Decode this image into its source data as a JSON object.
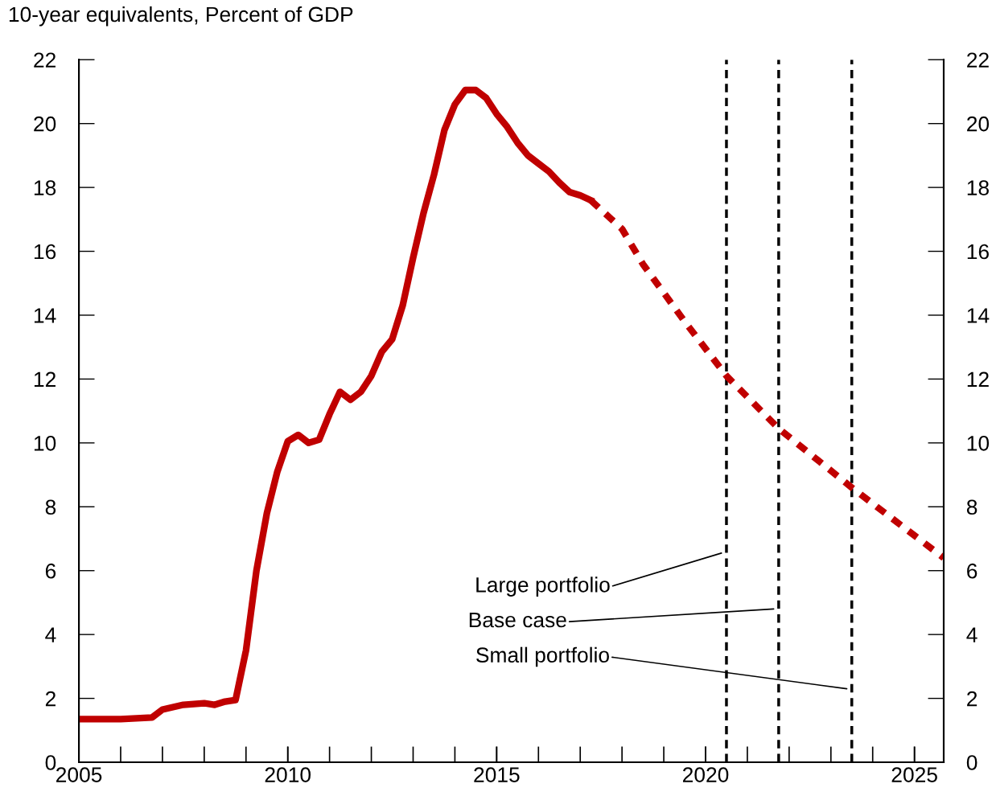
{
  "chart_data": {
    "type": "line",
    "ylabel": "10-year equivalents, Percent of GDP",
    "series": [
      {
        "color": "#c00000",
        "line_style": "solid",
        "x": [
          2005.0,
          2006.0,
          2006.75,
          2007.0,
          2007.5,
          2008.0,
          2008.25,
          2008.5,
          2008.75,
          2009.0,
          2009.25,
          2009.5,
          2009.75,
          2010.0,
          2010.25,
          2010.5,
          2010.75,
          2011.0,
          2011.25,
          2011.5,
          2011.75,
          2012.0,
          2012.25,
          2012.5,
          2012.75,
          2013.0,
          2013.25,
          2013.5,
          2013.75,
          2014.0,
          2014.25,
          2014.5,
          2014.75,
          2015.0,
          2015.25,
          2015.5,
          2015.75,
          2016.0,
          2016.25,
          2016.5,
          2016.75,
          2017.0,
          2017.25
        ],
        "values": [
          1.35,
          1.35,
          1.4,
          1.65,
          1.8,
          1.85,
          1.8,
          1.9,
          1.95,
          3.5,
          6.0,
          7.8,
          9.1,
          10.05,
          10.25,
          10.0,
          10.1,
          10.9,
          11.6,
          11.35,
          11.6,
          12.1,
          12.85,
          13.25,
          14.3,
          15.8,
          17.2,
          18.4,
          19.8,
          20.6,
          21.05,
          21.05,
          20.8,
          20.3,
          19.9,
          19.4,
          19.0,
          18.75,
          18.5,
          18.15,
          17.85,
          17.75,
          17.6
        ]
      },
      {
        "color": "#c00000",
        "line_style": "dashed",
        "x": [
          2017.25,
          2018.0,
          2018.5,
          2019.5,
          2020.5,
          2021.75,
          2023.5,
          2025.7
        ],
        "values": [
          17.6,
          16.7,
          15.6,
          13.8,
          12.1,
          10.45,
          8.6,
          6.4
        ]
      }
    ],
    "xlim": [
      2005,
      2025.7
    ],
    "xticks": [
      2005,
      2010,
      2015,
      2020,
      2025
    ],
    "ylim": [
      0,
      22
    ],
    "yticks": [
      0,
      2,
      4,
      6,
      8,
      10,
      12,
      14,
      16,
      18,
      20,
      22
    ],
    "y2lim": [
      0,
      22
    ],
    "y2ticks": [
      0,
      2,
      4,
      6,
      8,
      10,
      12,
      14,
      16,
      18,
      20,
      22
    ],
    "ref_lines": [
      {
        "axis": "x",
        "value": 2020.5,
        "label": "Large portfolio",
        "color": "#000000",
        "line_style": "dashed"
      },
      {
        "axis": "x",
        "value": 2021.75,
        "label": "Base case",
        "color": "#000000",
        "line_style": "dashed"
      },
      {
        "axis": "x",
        "value": 2023.5,
        "label": "Small portfolio",
        "color": "#000000",
        "line_style": "dashed"
      }
    ],
    "grid": false
  }
}
